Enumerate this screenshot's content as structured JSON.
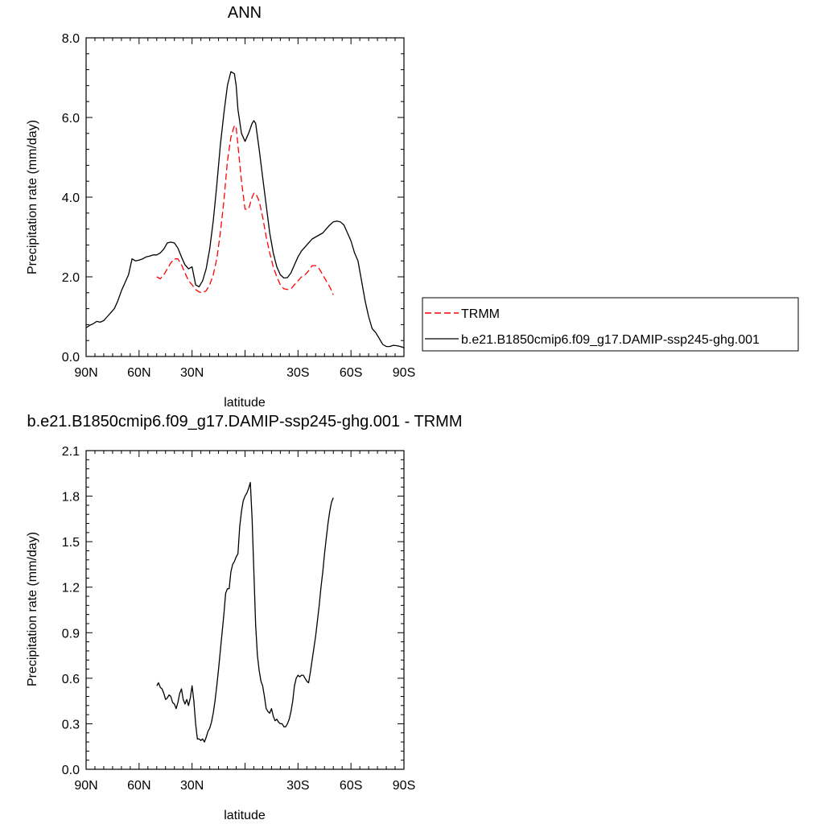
{
  "chart_data": [
    {
      "type": "line",
      "title": "ANN",
      "xlabel": "latitude",
      "ylabel": "Precipitation rate (mm/day)",
      "xlim": [
        90,
        -90
      ],
      "ylim": [
        0,
        8
      ],
      "xticks": [
        90,
        60,
        30,
        0,
        -30,
        -60,
        -90
      ],
      "xticklabels": [
        "90N",
        "60N",
        "30N",
        "",
        "30S",
        "60S",
        "90S"
      ],
      "yticks": [
        0,
        2,
        4,
        6,
        8
      ],
      "yticklabels": [
        "0.0",
        "2.0",
        "4.0",
        "6.0",
        "8.0"
      ],
      "legend": "right",
      "series": [
        {
          "name": "TRMM",
          "color": "#ff0000",
          "style": "dashed",
          "x": [
            50,
            48,
            46,
            44,
            42,
            40,
            38,
            36,
            34,
            32,
            30,
            28,
            26,
            24,
            22,
            20,
            18,
            16,
            14,
            12,
            10,
            8,
            6,
            5,
            4,
            2,
            0,
            -2,
            -4,
            -5,
            -6,
            -8,
            -10,
            -12,
            -14,
            -16,
            -18,
            -20,
            -22,
            -24,
            -26,
            -28,
            -30,
            -32,
            -34,
            -36,
            -38,
            -40,
            -42,
            -44,
            -46,
            -48,
            -50
          ],
          "y": [
            2.0,
            1.95,
            2.05,
            2.2,
            2.35,
            2.45,
            2.45,
            2.3,
            2.1,
            1.9,
            1.8,
            1.68,
            1.62,
            1.6,
            1.65,
            1.8,
            2.05,
            2.45,
            3.1,
            3.9,
            4.9,
            5.5,
            5.8,
            5.75,
            5.3,
            4.4,
            3.7,
            3.7,
            4.0,
            4.1,
            4.1,
            3.9,
            3.5,
            3.0,
            2.6,
            2.25,
            2.0,
            1.8,
            1.7,
            1.68,
            1.7,
            1.8,
            1.9,
            2.0,
            2.05,
            2.15,
            2.28,
            2.28,
            2.2,
            2.05,
            1.9,
            1.75,
            1.55
          ]
        },
        {
          "name": "b.e21.B1850cmip6.f09_g17.DAMIP-ssp245-ghg.001",
          "color": "#000000",
          "style": "solid",
          "x": [
            90,
            88,
            86,
            84,
            82,
            80,
            78,
            76,
            74,
            72,
            70,
            68,
            66,
            64,
            62,
            60,
            58,
            56,
            54,
            52,
            50,
            48,
            46,
            44,
            42,
            40,
            38,
            36,
            34,
            32,
            30,
            28,
            26,
            24,
            22,
            20,
            18,
            16,
            14,
            12,
            10,
            8,
            6,
            5,
            4,
            2,
            0,
            -2,
            -4,
            -5,
            -6,
            -8,
            -10,
            -12,
            -14,
            -16,
            -18,
            -20,
            -22,
            -24,
            -26,
            -28,
            -30,
            -32,
            -34,
            -36,
            -38,
            -40,
            -42,
            -44,
            -46,
            -48,
            -50,
            -52,
            -54,
            -56,
            -58,
            -60,
            -62,
            -64,
            -66,
            -68,
            -70,
            -72,
            -74,
            -76,
            -78,
            -80,
            -82,
            -84,
            -86,
            -88,
            -90
          ],
          "y": [
            0.72,
            0.78,
            0.82,
            0.88,
            0.86,
            0.9,
            1.0,
            1.1,
            1.2,
            1.4,
            1.65,
            1.85,
            2.05,
            2.45,
            2.4,
            2.42,
            2.45,
            2.5,
            2.52,
            2.55,
            2.55,
            2.6,
            2.7,
            2.85,
            2.87,
            2.85,
            2.72,
            2.5,
            2.3,
            2.2,
            2.25,
            1.8,
            1.75,
            1.9,
            2.2,
            2.7,
            3.4,
            4.3,
            5.3,
            6.1,
            6.8,
            7.15,
            7.1,
            6.8,
            6.2,
            5.6,
            5.4,
            5.6,
            5.85,
            5.92,
            5.85,
            5.2,
            4.5,
            3.8,
            3.1,
            2.6,
            2.25,
            2.05,
            1.97,
            1.98,
            2.1,
            2.3,
            2.5,
            2.65,
            2.75,
            2.85,
            2.95,
            3.0,
            3.05,
            3.1,
            3.2,
            3.3,
            3.38,
            3.4,
            3.38,
            3.3,
            3.1,
            2.9,
            2.6,
            2.4,
            1.9,
            1.4,
            1.0,
            0.7,
            0.6,
            0.45,
            0.3,
            0.25,
            0.25,
            0.28,
            0.27,
            0.25,
            0.22
          ]
        }
      ]
    },
    {
      "type": "line",
      "title": "b.e21.B1850cmip6.f09_g17.DAMIP-ssp245-ghg.001 - TRMM",
      "xlabel": "latitude",
      "ylabel": "Precipitation rate (mm/day)",
      "xlim": [
        90,
        -90
      ],
      "ylim": [
        0,
        2.1
      ],
      "xticks": [
        90,
        60,
        30,
        0,
        -30,
        -60,
        -90
      ],
      "xticklabels": [
        "90N",
        "60N",
        "30N",
        "",
        "30S",
        "60S",
        "90S"
      ],
      "yticks": [
        0,
        0.3,
        0.6,
        0.9,
        1.2,
        1.5,
        1.8,
        2.1
      ],
      "yticklabels": [
        "0.0",
        "0.3",
        "0.6",
        "0.9",
        "1.2",
        "1.5",
        "1.8",
        "2.1"
      ],
      "series": [
        {
          "color": "#000000",
          "style": "solid",
          "x": [
            50,
            49,
            48,
            47,
            46,
            45,
            44,
            43,
            42,
            41,
            40,
            39,
            38,
            37,
            36,
            35,
            34,
            33,
            32,
            31,
            30,
            29,
            28,
            27,
            26,
            25,
            24,
            23,
            22,
            21,
            20,
            19,
            18,
            17,
            16,
            15,
            14,
            13,
            12,
            11,
            10,
            9,
            8,
            7,
            6,
            5,
            4,
            3,
            2,
            1,
            0,
            -1,
            -2,
            -3,
            -4,
            -5,
            -6,
            -7,
            -8,
            -9,
            -10,
            -11,
            -12,
            -13,
            -14,
            -15,
            -16,
            -17,
            -18,
            -19,
            -20,
            -21,
            -22,
            -23,
            -24,
            -25,
            -26,
            -27,
            -28,
            -29,
            -30,
            -31,
            -32,
            -33,
            -34,
            -35,
            -36,
            -37,
            -38,
            -39,
            -40,
            -41,
            -42,
            -43,
            -44,
            -45,
            -46,
            -47,
            -48,
            -49,
            -50
          ],
          "y": [
            0.55,
            0.57,
            0.54,
            0.53,
            0.5,
            0.46,
            0.47,
            0.49,
            0.48,
            0.44,
            0.43,
            0.4,
            0.44,
            0.5,
            0.53,
            0.46,
            0.43,
            0.46,
            0.42,
            0.47,
            0.55,
            0.45,
            0.3,
            0.2,
            0.2,
            0.19,
            0.2,
            0.18,
            0.21,
            0.25,
            0.27,
            0.31,
            0.37,
            0.45,
            0.55,
            0.66,
            0.78,
            0.9,
            1.02,
            1.16,
            1.19,
            1.19,
            1.3,
            1.35,
            1.37,
            1.4,
            1.42,
            1.6,
            1.7,
            1.77,
            1.8,
            1.82,
            1.85,
            1.89,
            1.65,
            1.3,
            0.95,
            0.75,
            0.65,
            0.58,
            0.55,
            0.48,
            0.4,
            0.38,
            0.37,
            0.4,
            0.35,
            0.32,
            0.33,
            0.31,
            0.3,
            0.3,
            0.28,
            0.28,
            0.3,
            0.33,
            0.38,
            0.45,
            0.55,
            0.6,
            0.62,
            0.61,
            0.62,
            0.62,
            0.6,
            0.58,
            0.57,
            0.64,
            0.72,
            0.8,
            0.88,
            0.98,
            1.08,
            1.2,
            1.3,
            1.42,
            1.52,
            1.62,
            1.7,
            1.76,
            1.79
          ]
        }
      ]
    }
  ]
}
